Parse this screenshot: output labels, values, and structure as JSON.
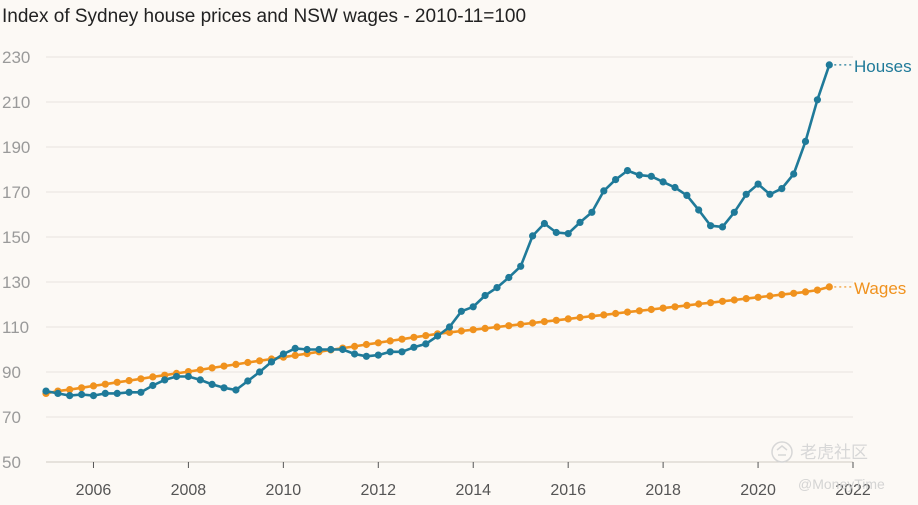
{
  "chart_data": {
    "type": "line",
    "title": "Index of Sydney house prices and NSW wages - 2010-11=100",
    "xlabel": "",
    "ylabel": "",
    "ylim": [
      50,
      230
    ],
    "xlim": [
      2005.0,
      2022.0
    ],
    "yticks": [
      "50",
      "70",
      "90",
      "110",
      "130",
      "150",
      "170",
      "190",
      "210",
      "230"
    ],
    "xticks": [
      "2006",
      "2008",
      "2010",
      "2012",
      "2014",
      "2016",
      "2018",
      "2020",
      "2022"
    ],
    "grid": true,
    "start_year": 2005.0,
    "step": 0.25,
    "series": [
      {
        "name": "Houses",
        "label": "Houses",
        "color": "#1f7a99",
        "values": [
          81.5,
          80.5,
          79.5,
          80,
          79.5,
          80.5,
          80.5,
          81,
          81,
          84,
          86.5,
          88,
          88,
          86.5,
          84.5,
          83,
          82,
          86,
          90,
          94.5,
          98,
          100.5,
          100,
          100,
          100,
          100,
          98,
          97,
          97.5,
          99,
          99,
          101,
          102.5,
          106,
          110,
          117,
          119,
          124,
          127.5,
          132,
          137,
          150.5,
          156,
          152,
          151.5,
          156.5,
          161,
          170.5,
          175.5,
          179.5,
          177.5,
          177,
          174.5,
          172,
          168.5,
          162,
          155,
          154.5,
          161,
          169,
          173.5,
          169,
          171.5,
          178,
          192.5,
          211,
          226.5
        ]
      },
      {
        "name": "Wages",
        "label": "Wages",
        "color": "#f0921e",
        "values": [
          80.5,
          81.5,
          82.2,
          83,
          83.8,
          84.6,
          85.4,
          86.2,
          87,
          87.8,
          88.6,
          89.4,
          90.2,
          91,
          91.8,
          92.6,
          93.4,
          94.2,
          95,
          95.8,
          96.6,
          97.4,
          98.2,
          99,
          99.8,
          100.6,
          101.4,
          102.2,
          103,
          103.8,
          104.6,
          105.4,
          106.2,
          107,
          107.6,
          108.2,
          108.8,
          109.4,
          110,
          110.6,
          111.2,
          111.8,
          112.4,
          113,
          113.6,
          114.2,
          114.8,
          115.4,
          116,
          116.6,
          117.2,
          117.8,
          118.4,
          119,
          119.6,
          120.2,
          120.8,
          121.4,
          122,
          122.6,
          123.2,
          123.8,
          124.4,
          125,
          125.6,
          126.4,
          127.8
        ]
      }
    ]
  },
  "watermark": {
    "brand": "老虎社区",
    "handle": "@MoneyTime"
  }
}
